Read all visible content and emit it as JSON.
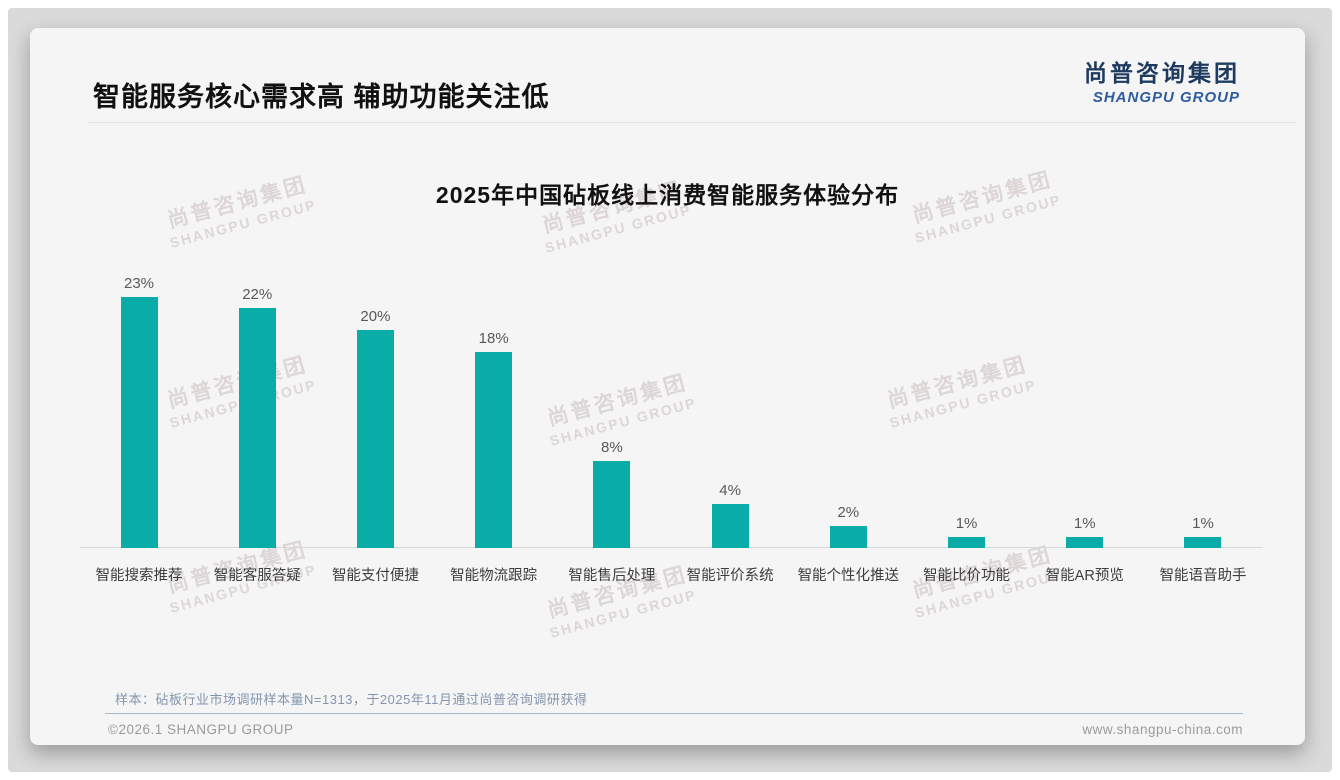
{
  "page": {
    "main_title": "智能服务核心需求高 辅助功能关注低",
    "logo": {
      "cn": "尚普咨询集团",
      "en": "SHANGPU GROUP"
    },
    "watermark": {
      "line1": "尚普咨询集团",
      "line2": "SHANGPU GROUP"
    },
    "note": "样本：砧板行业市场调研样本量N=1313，于2025年11月通过尚普咨询调研获得",
    "footer": {
      "copyright": "©2026.1 SHANGPU GROUP",
      "website": "www.shangpu-china.com"
    }
  },
  "chart_data": {
    "type": "bar",
    "title": "2025年中国砧板线上消费智能服务体验分布",
    "categories": [
      "智能搜索推荐",
      "智能客服答疑",
      "智能支付便捷",
      "智能物流跟踪",
      "智能售后处理",
      "智能评价系统",
      "智能个性化推送",
      "智能比价功能",
      "智能AR预览",
      "智能语音助手"
    ],
    "values": [
      23,
      22,
      20,
      18,
      8,
      4,
      2,
      1,
      1,
      1
    ],
    "value_labels": [
      "23%",
      "22%",
      "20%",
      "18%",
      "8%",
      "4%",
      "2%",
      "1%",
      "1%",
      "1%"
    ],
    "bar_color": "#0aaca7",
    "value_label_color": "#595959",
    "xlabel": "",
    "ylabel": "",
    "ylim": [
      0,
      25
    ],
    "grid": false,
    "legend": "none"
  }
}
